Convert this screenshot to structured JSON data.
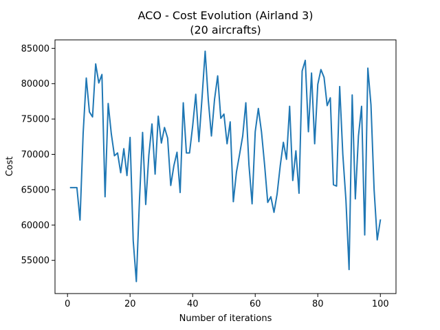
{
  "chart_data": {
    "type": "line",
    "title": "ACO - Cost Evolution (Airland 3)",
    "subtitle": "(20 aircrafts)",
    "xlabel": "Number of iterations",
    "ylabel": "Cost",
    "xlim": [
      -4,
      105
    ],
    "ylim": [
      50300,
      86200
    ],
    "xticks": [
      0,
      20,
      40,
      60,
      80,
      100
    ],
    "yticks": [
      55000,
      60000,
      65000,
      70000,
      75000,
      80000,
      85000
    ],
    "grid": false,
    "series_color": "#1f77b4",
    "series": [
      {
        "x": [
          1,
          2,
          3,
          4,
          5,
          6,
          7,
          8,
          9,
          10,
          11,
          12,
          13,
          14,
          15,
          16,
          17,
          18,
          19,
          20,
          21,
          22,
          23,
          24,
          25,
          26,
          27,
          28,
          29,
          30,
          31,
          32,
          33,
          34,
          35,
          36,
          37,
          38,
          39,
          40,
          41,
          42,
          43,
          44,
          45,
          46,
          47,
          48,
          49,
          50,
          51,
          52,
          53,
          54,
          55,
          56,
          57,
          58,
          59,
          60,
          61,
          62,
          63,
          64,
          65,
          66,
          67,
          68,
          69,
          70,
          71,
          72,
          73,
          74,
          75,
          76,
          77,
          78,
          79,
          80,
          81,
          82,
          83,
          84,
          85,
          86,
          87,
          88,
          89,
          90,
          91,
          92,
          93,
          94,
          95,
          96,
          97,
          98,
          99,
          100
        ],
        "values": [
          65300,
          65300,
          65300,
          60700,
          73000,
          80800,
          76000,
          75300,
          82800,
          80100,
          81300,
          64000,
          77200,
          72900,
          69800,
          70200,
          67400,
          70800,
          67000,
          72400,
          57800,
          52000,
          63500,
          73100,
          62900,
          69900,
          74300,
          67200,
          75400,
          71600,
          73800,
          72300,
          65600,
          68400,
          70300,
          64600,
          77300,
          70200,
          70200,
          74000,
          78500,
          71800,
          78000,
          84600,
          77700,
          72600,
          77800,
          81100,
          75100,
          75700,
          71500,
          74600,
          63300,
          67500,
          70000,
          72600,
          77300,
          68500,
          63000,
          73200,
          76500,
          73200,
          68500,
          63200,
          64000,
          61800,
          64400,
          68400,
          71700,
          69300,
          76800,
          66300,
          70500,
          64500,
          81800,
          83300,
          73200,
          81500,
          71500,
          79900,
          82000,
          80900,
          76900,
          78000,
          65700,
          65500,
          79600,
          70000,
          63500,
          53700,
          78400,
          63700,
          72600,
          76800,
          58600,
          82200,
          77000,
          65000,
          57900,
          60700
        ]
      }
    ]
  }
}
